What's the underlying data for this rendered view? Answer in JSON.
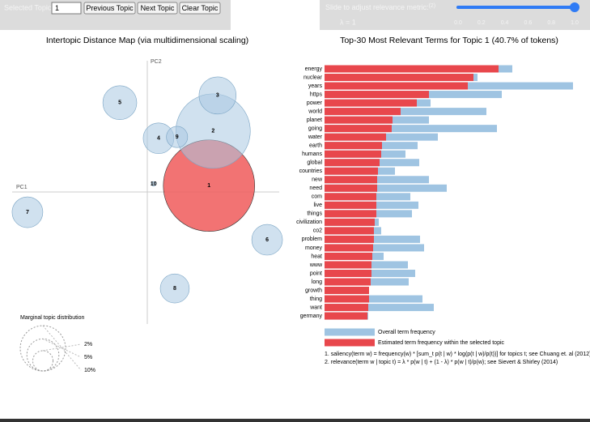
{
  "controls": {
    "selected_topic_label": "Selected Topic:",
    "selected_topic": "1",
    "buttons": [
      "Previous Topic",
      "Next Topic",
      "Clear Topic"
    ],
    "slider_label": "Slide to adjust relevance metric:",
    "slider_help": "(2)",
    "lambda_label": "λ = 1",
    "slider_value": 1,
    "slider_range": [
      0,
      1
    ],
    "slider_ticks": [
      {
        "value": 0,
        "label": "0.0"
      },
      {
        "value": 0.2,
        "label": "0.2"
      },
      {
        "value": 0.4,
        "label": "0.4"
      },
      {
        "value": 0.6,
        "label": "0.6"
      },
      {
        "value": 0.8,
        "label": "0.8"
      },
      {
        "value": 1,
        "label": "1.0"
      }
    ]
  },
  "chart_data": [
    {
      "type": "scatter",
      "title": "Intertopic Distance Map (via multidimensional scaling)",
      "x_label": "PC1",
      "y_label": "PC2",
      "categories": [
        "1",
        "2",
        "3",
        "4",
        "5",
        "6",
        "7",
        "8",
        "9",
        "10"
      ],
      "x": [
        0.137,
        0.146,
        0.156,
        0.025,
        -0.061,
        0.266,
        -0.266,
        0.061,
        0.066,
        0.014
      ],
      "y": [
        0.014,
        0.135,
        0.214,
        0.119,
        0.198,
        -0.106,
        -0.045,
        -0.214,
        0.122,
        0.018
      ],
      "sizes": [
        40.7,
        27,
        6.7,
        4.6,
        5.6,
        4.6,
        4.6,
        4.1,
        2.2,
        0.1
      ],
      "xlim": [
        -0.3,
        0.3
      ],
      "ylim": [
        -0.3,
        0.3
      ],
      "color": "#a9c9e2",
      "highlight_color": "#f05a5a",
      "size_legend": {
        "title": "Marginal topic distribution",
        "ticks": [
          {
            "value": 2,
            "label": "2%"
          },
          {
            "value": 5,
            "label": "5%"
          },
          {
            "value": 10,
            "label": "10%"
          }
        ]
      }
    },
    {
      "type": "bar",
      "orientation": "horizontal",
      "title": "Top-30 Most Relevant Terms for Topic 1 (40.7% of tokens)",
      "categories": [
        "energy",
        "nuclear",
        "years",
        "https",
        "power",
        "world",
        "planet",
        "going",
        "water",
        "earth",
        "humans",
        "global",
        "countries",
        "new",
        "need",
        "com",
        "live",
        "things",
        "civilization",
        "co2",
        "problem",
        "money",
        "heat",
        "www",
        "point",
        "long",
        "growth",
        "thing",
        "want",
        "germany"
      ],
      "series": [
        {
          "name": "Overall term frequency",
          "color": "#9fc4e2",
          "values": [
            232,
            189,
            307,
            219,
            131,
            200,
            129,
            213,
            140,
            115,
            100,
            117,
            87,
            129,
            151,
            106,
            116,
            108,
            67,
            70,
            118,
            123,
            73,
            103,
            112,
            104,
            55,
            121,
            135,
            54
          ]
        },
        {
          "name": "Estimated term frequency within the selected topic",
          "color": "#e8474c",
          "values": [
            215,
            184,
            177,
            129,
            114,
            94,
            84,
            83,
            76,
            71,
            70,
            68,
            66,
            65,
            65,
            64,
            64,
            64,
            62,
            61,
            61,
            60,
            59,
            58,
            58,
            57,
            55,
            55,
            54,
            53
          ]
        }
      ],
      "xlim": [
        0,
        320
      ],
      "notes": [
        "1. saliency(term w) = frequency(w) * [sum_t p(t | w) * log(p(t | w)/p(t))] for topics t; see Chuang et. al (2012)",
        "2. relevance(term w | topic t) = λ * p(w | t) + (1 - λ) * p(w | t)/p(w); see Sievert & Shirley (2014)"
      ]
    }
  ]
}
